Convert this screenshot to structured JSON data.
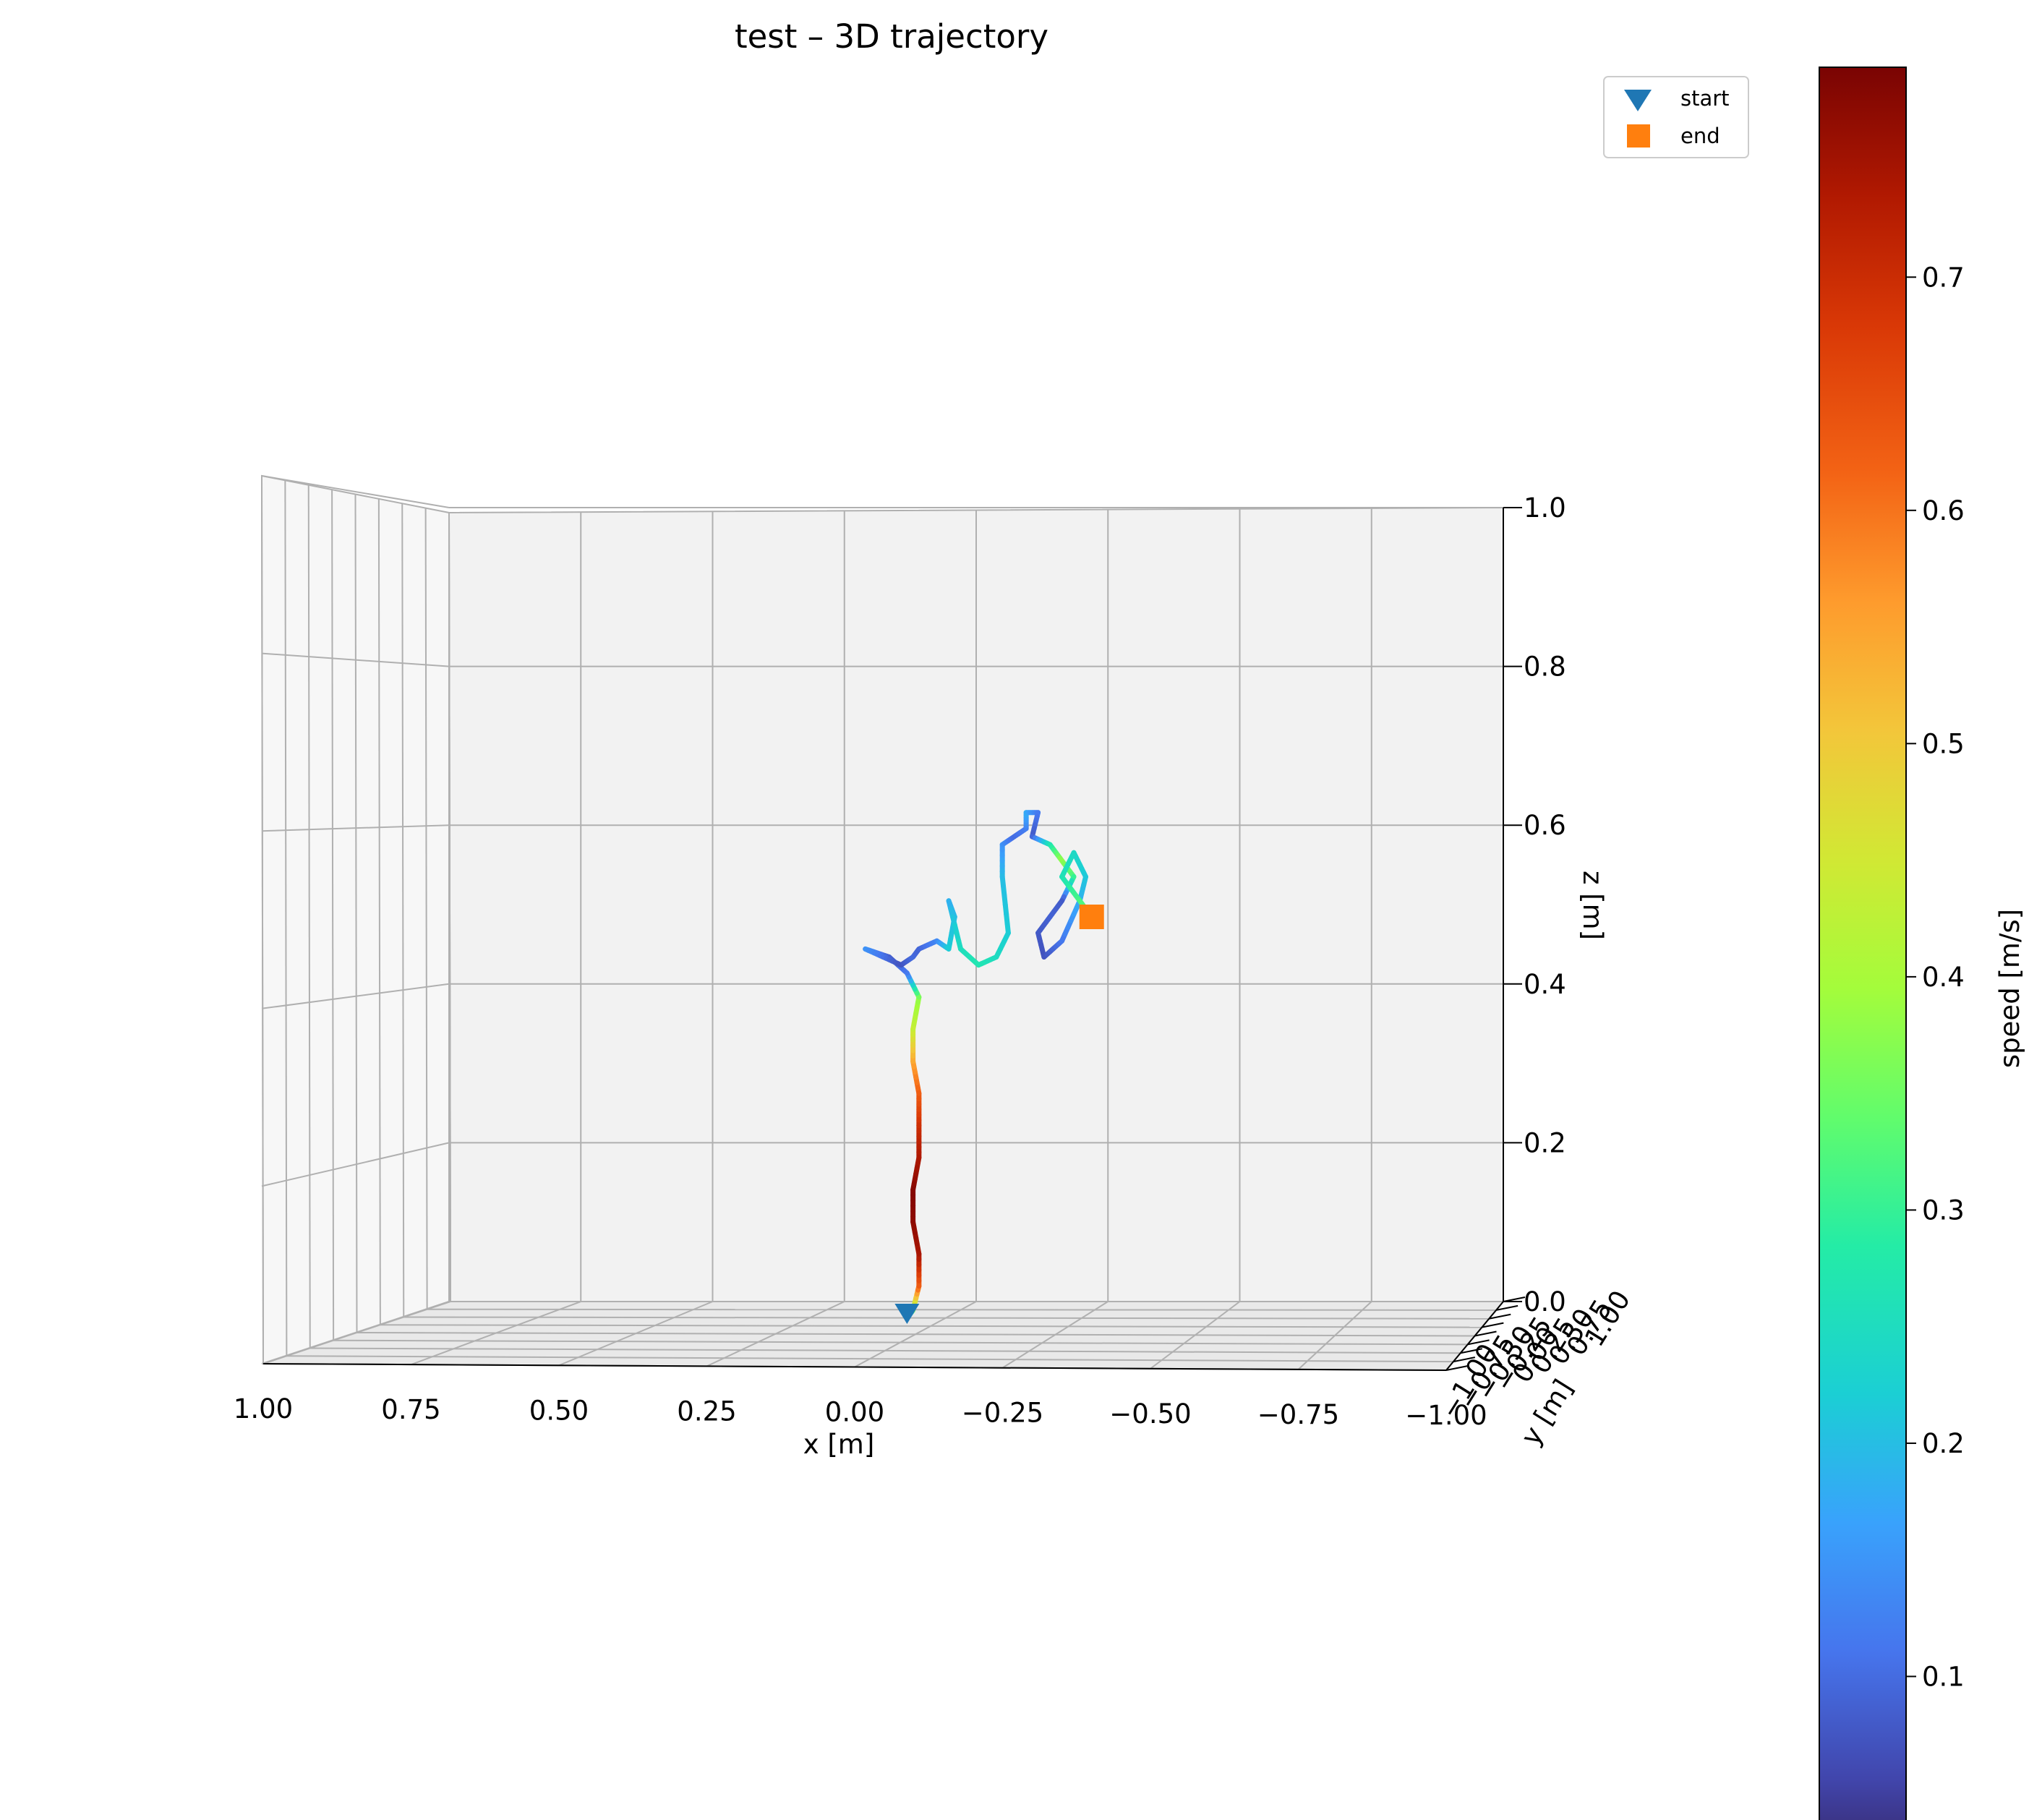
{
  "chart_data": {
    "type": "scatter",
    "projection": "3d",
    "title": "test – 3D trajectory",
    "xlabel": "x [m]",
    "ylabel": "y [m]",
    "zlabel": "z [m]",
    "xlim": [
      1.0,
      -1.0
    ],
    "ylim": [
      -1.0,
      1.0
    ],
    "zlim": [
      0.0,
      1.0
    ],
    "x_ticks": [
      "1.00",
      "0.75",
      "0.50",
      "0.25",
      "0.00",
      "−0.25",
      "−0.50",
      "−0.75",
      "−1.00"
    ],
    "z_ticks": [
      "0.0",
      "0.2",
      "0.4",
      "0.6",
      "0.8",
      "1.0"
    ],
    "y_ticks": [
      "−1.00",
      "−0.75",
      "−0.50",
      "−0.25",
      "0.00",
      "0.25",
      "0.50",
      "0.75",
      "1.00"
    ],
    "grid": true,
    "colorbar": {
      "label": "speed [m/s]",
      "colormap": "turbo",
      "range": [
        0.0,
        0.79
      ],
      "ticks": [
        "0.1",
        "0.2",
        "0.3",
        "0.4",
        "0.5",
        "0.6",
        "0.7"
      ]
    },
    "series": [
      {
        "name": "trajectory",
        "points": [
          {
            "x": -0.1,
            "z": 0.0,
            "s": 0.08
          },
          {
            "x": -0.11,
            "z": 0.01,
            "s": 0.35
          },
          {
            "x": -0.12,
            "z": 0.04,
            "s": 0.62
          },
          {
            "x": -0.12,
            "z": 0.08,
            "s": 0.74
          },
          {
            "x": -0.11,
            "z": 0.12,
            "s": 0.77
          },
          {
            "x": -0.11,
            "z": 0.16,
            "s": 0.78
          },
          {
            "x": -0.12,
            "z": 0.2,
            "s": 0.74
          },
          {
            "x": -0.12,
            "z": 0.24,
            "s": 0.7
          },
          {
            "x": -0.12,
            "z": 0.28,
            "s": 0.63
          },
          {
            "x": -0.11,
            "z": 0.32,
            "s": 0.55
          },
          {
            "x": -0.11,
            "z": 0.36,
            "s": 0.44
          },
          {
            "x": -0.12,
            "z": 0.4,
            "s": 0.38
          },
          {
            "x": -0.1,
            "z": 0.43,
            "s": 0.12
          },
          {
            "x": -0.07,
            "z": 0.45,
            "s": 0.08
          },
          {
            "x": -0.03,
            "z": 0.46,
            "s": 0.15
          },
          {
            "x": -0.06,
            "z": 0.45,
            "s": 0.11
          },
          {
            "x": -0.09,
            "z": 0.44,
            "s": 0.07
          },
          {
            "x": -0.11,
            "z": 0.45,
            "s": 0.1
          },
          {
            "x": -0.12,
            "z": 0.46,
            "s": 0.09
          },
          {
            "x": -0.15,
            "z": 0.47,
            "s": 0.13
          },
          {
            "x": -0.17,
            "z": 0.46,
            "s": 0.22
          },
          {
            "x": -0.18,
            "z": 0.5,
            "s": 0.2
          },
          {
            "x": -0.17,
            "z": 0.52,
            "s": 0.18
          },
          {
            "x": -0.19,
            "z": 0.46,
            "s": 0.25
          },
          {
            "x": -0.22,
            "z": 0.44,
            "s": 0.27
          },
          {
            "x": -0.25,
            "z": 0.45,
            "s": 0.25
          },
          {
            "x": -0.27,
            "z": 0.48,
            "s": 0.22
          },
          {
            "x": -0.26,
            "z": 0.55,
            "s": 0.2
          },
          {
            "x": -0.26,
            "z": 0.59,
            "s": 0.15
          },
          {
            "x": -0.28,
            "z": 0.6,
            "s": 0.1
          },
          {
            "x": -0.3,
            "z": 0.61,
            "s": 0.12
          },
          {
            "x": -0.3,
            "z": 0.63,
            "s": 0.18
          },
          {
            "x": -0.32,
            "z": 0.63,
            "s": 0.12
          },
          {
            "x": -0.31,
            "z": 0.6,
            "s": 0.08
          },
          {
            "x": -0.34,
            "z": 0.59,
            "s": 0.26
          },
          {
            "x": -0.36,
            "z": 0.57,
            "s": 0.38
          },
          {
            "x": -0.38,
            "z": 0.55,
            "s": 0.32
          },
          {
            "x": -0.36,
            "z": 0.52,
            "s": 0.08
          },
          {
            "x": -0.34,
            "z": 0.5,
            "s": 0.09
          },
          {
            "x": -0.32,
            "z": 0.48,
            "s": 0.08
          },
          {
            "x": -0.33,
            "z": 0.45,
            "s": 0.07
          },
          {
            "x": -0.36,
            "z": 0.47,
            "s": 0.11
          },
          {
            "x": -0.39,
            "z": 0.52,
            "s": 0.18
          },
          {
            "x": -0.4,
            "z": 0.55,
            "s": 0.21
          },
          {
            "x": -0.38,
            "z": 0.58,
            "s": 0.24
          },
          {
            "x": -0.36,
            "z": 0.55,
            "s": 0.26
          },
          {
            "x": -0.38,
            "z": 0.53,
            "s": 0.3
          },
          {
            "x": -0.4,
            "z": 0.51,
            "s": 0.33
          },
          {
            "x": -0.41,
            "z": 0.5,
            "s": 0.2
          }
        ]
      },
      {
        "name": "start",
        "marker": "triangle-down",
        "color": "#1f77b4",
        "x": -0.1,
        "z": 0.0
      },
      {
        "name": "end",
        "marker": "square",
        "color": "#ff7f0e",
        "x": -0.41,
        "z": 0.5
      }
    ],
    "legend": {
      "placement": "upper-right",
      "entries": [
        "start",
        "end"
      ]
    }
  }
}
